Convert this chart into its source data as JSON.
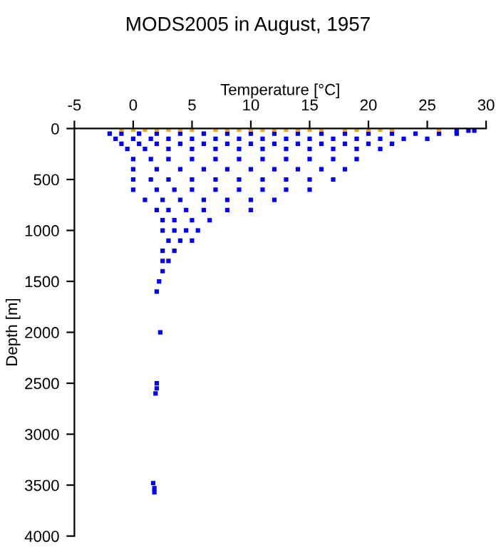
{
  "chart_data": {
    "type": "scatter",
    "title": "MODS2005 in August, 1957",
    "xlabel": "Temperature [°C]",
    "ylabel": "Depth [m]",
    "xlim": [
      -5,
      30
    ],
    "xticks": [
      -5,
      0,
      5,
      10,
      15,
      20,
      25,
      30
    ],
    "ylim": [
      4000,
      0
    ],
    "yticks": [
      0,
      500,
      1000,
      1500,
      2000,
      2500,
      3000,
      3500,
      4000
    ],
    "grid": false,
    "legend": false,
    "marker": "square",
    "series": [
      {
        "color": "#0000ff",
        "x": [
          28.5,
          29.0,
          27.5,
          -2.0,
          -1.0,
          0.5,
          2,
          4,
          6,
          8,
          10,
          12,
          14,
          16,
          18,
          20,
          22,
          24,
          26,
          27.5,
          -1.5,
          0,
          1.5,
          3,
          5,
          7,
          9,
          11,
          13,
          15,
          17,
          19,
          21,
          23,
          25,
          -1,
          0.5,
          2,
          4,
          6,
          8,
          10,
          12,
          14,
          16,
          18,
          20,
          22,
          -0.5,
          1,
          3,
          5,
          7,
          9,
          11,
          13,
          15,
          17,
          19,
          21,
          0,
          1.5,
          3,
          5,
          7,
          9,
          11,
          13,
          15,
          17,
          19,
          0,
          2,
          4,
          6,
          8,
          10,
          12,
          14,
          16,
          18,
          0,
          1.5,
          3,
          5,
          7,
          9,
          11,
          13,
          15,
          17,
          0,
          2,
          3.5,
          5,
          7,
          9,
          11,
          13,
          15,
          1,
          2.5,
          4,
          6,
          8,
          10,
          12,
          2,
          3,
          4.5,
          6,
          8,
          10,
          2.5,
          3.5,
          5,
          6.5,
          2.5,
          3.5,
          4.5,
          5.5,
          3,
          4,
          5,
          2.5,
          3.5,
          2.5,
          3,
          2.5,
          2.2,
          2.0,
          2.3,
          2.0,
          2.0,
          1.9,
          1.7,
          1.8,
          1.8
        ],
        "values": [
          20,
          20,
          20,
          50,
          50,
          50,
          50,
          50,
          50,
          50,
          50,
          50,
          50,
          50,
          50,
          50,
          50,
          50,
          50,
          50,
          100,
          100,
          100,
          100,
          100,
          100,
          100,
          100,
          100,
          100,
          100,
          100,
          100,
          100,
          100,
          150,
          150,
          150,
          150,
          150,
          150,
          150,
          150,
          150,
          150,
          150,
          150,
          150,
          200,
          200,
          200,
          200,
          200,
          200,
          200,
          200,
          200,
          200,
          200,
          200,
          300,
          300,
          300,
          300,
          300,
          300,
          300,
          300,
          300,
          300,
          300,
          400,
          400,
          400,
          400,
          400,
          400,
          400,
          400,
          400,
          400,
          500,
          500,
          500,
          500,
          500,
          500,
          500,
          500,
          500,
          500,
          600,
          600,
          600,
          600,
          600,
          600,
          600,
          600,
          600,
          700,
          700,
          700,
          700,
          700,
          700,
          700,
          800,
          800,
          800,
          800,
          800,
          800,
          900,
          900,
          900,
          900,
          1000,
          1000,
          1000,
          1000,
          1100,
          1100,
          1100,
          1200,
          1200,
          1300,
          1300,
          1400,
          1500,
          1600,
          2000,
          2500,
          2550,
          2600,
          3480,
          3530,
          3570
        ]
      },
      {
        "color": "#ffa500",
        "x": [
          -1,
          0,
          1,
          2,
          3,
          4,
          5,
          7,
          8,
          9,
          10,
          11,
          12,
          13,
          14,
          15,
          16,
          18,
          19,
          20,
          21,
          22,
          26
        ],
        "values": [
          10,
          10,
          10,
          10,
          10,
          10,
          10,
          10,
          10,
          10,
          10,
          10,
          10,
          10,
          10,
          10,
          10,
          10,
          10,
          10,
          10,
          10,
          10
        ]
      }
    ]
  }
}
